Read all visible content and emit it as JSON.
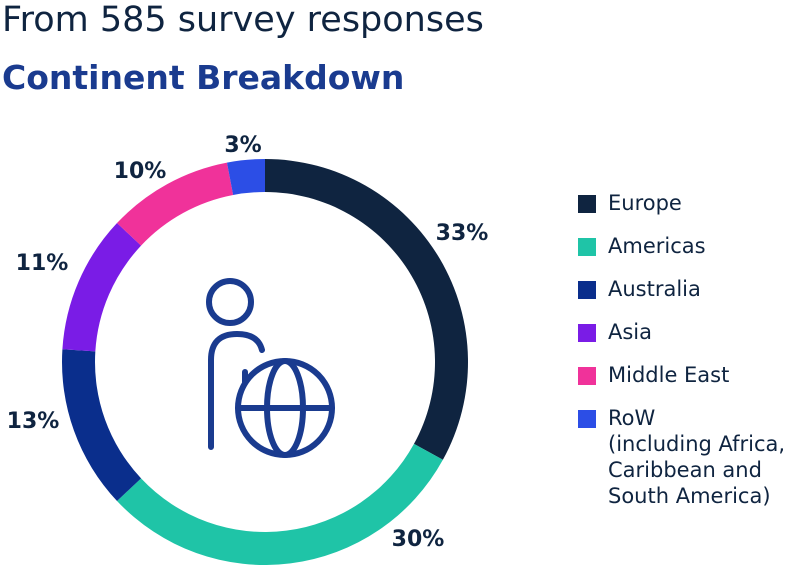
{
  "header": {
    "subtitle": "From 585 survey responses",
    "title": "Continent Breakdown"
  },
  "chart_data": {
    "type": "pie",
    "donut": true,
    "center_icon": "person-globe-icon",
    "series": [
      {
        "name": "Europe",
        "value": 33,
        "label": "33%",
        "color": "#0f2440"
      },
      {
        "name": "Americas",
        "value": 30,
        "label": "30%",
        "color": "#1fc4a7"
      },
      {
        "name": "Australia",
        "value": 13,
        "label": "13%",
        "color": "#0a2e8c"
      },
      {
        "name": "Asia",
        "value": 11,
        "label": "11%",
        "color": "#7a1ce6"
      },
      {
        "name": "Middle East",
        "value": 10,
        "label": "10%",
        "color": "#f0329a"
      },
      {
        "name": "RoW\n(including Africa, Caribbean and South America)",
        "value": 3,
        "label": "3%",
        "color": "#2c4ee6"
      }
    ],
    "legend_position": "right"
  },
  "legend": {
    "items": [
      {
        "label": "Europe"
      },
      {
        "label": "Americas"
      },
      {
        "label": "Australia"
      },
      {
        "label": "Asia"
      },
      {
        "label": "Middle East"
      },
      {
        "label": "RoW (including Africa, Caribbean and South America)"
      }
    ]
  },
  "icon_color": "#1a3b8f"
}
